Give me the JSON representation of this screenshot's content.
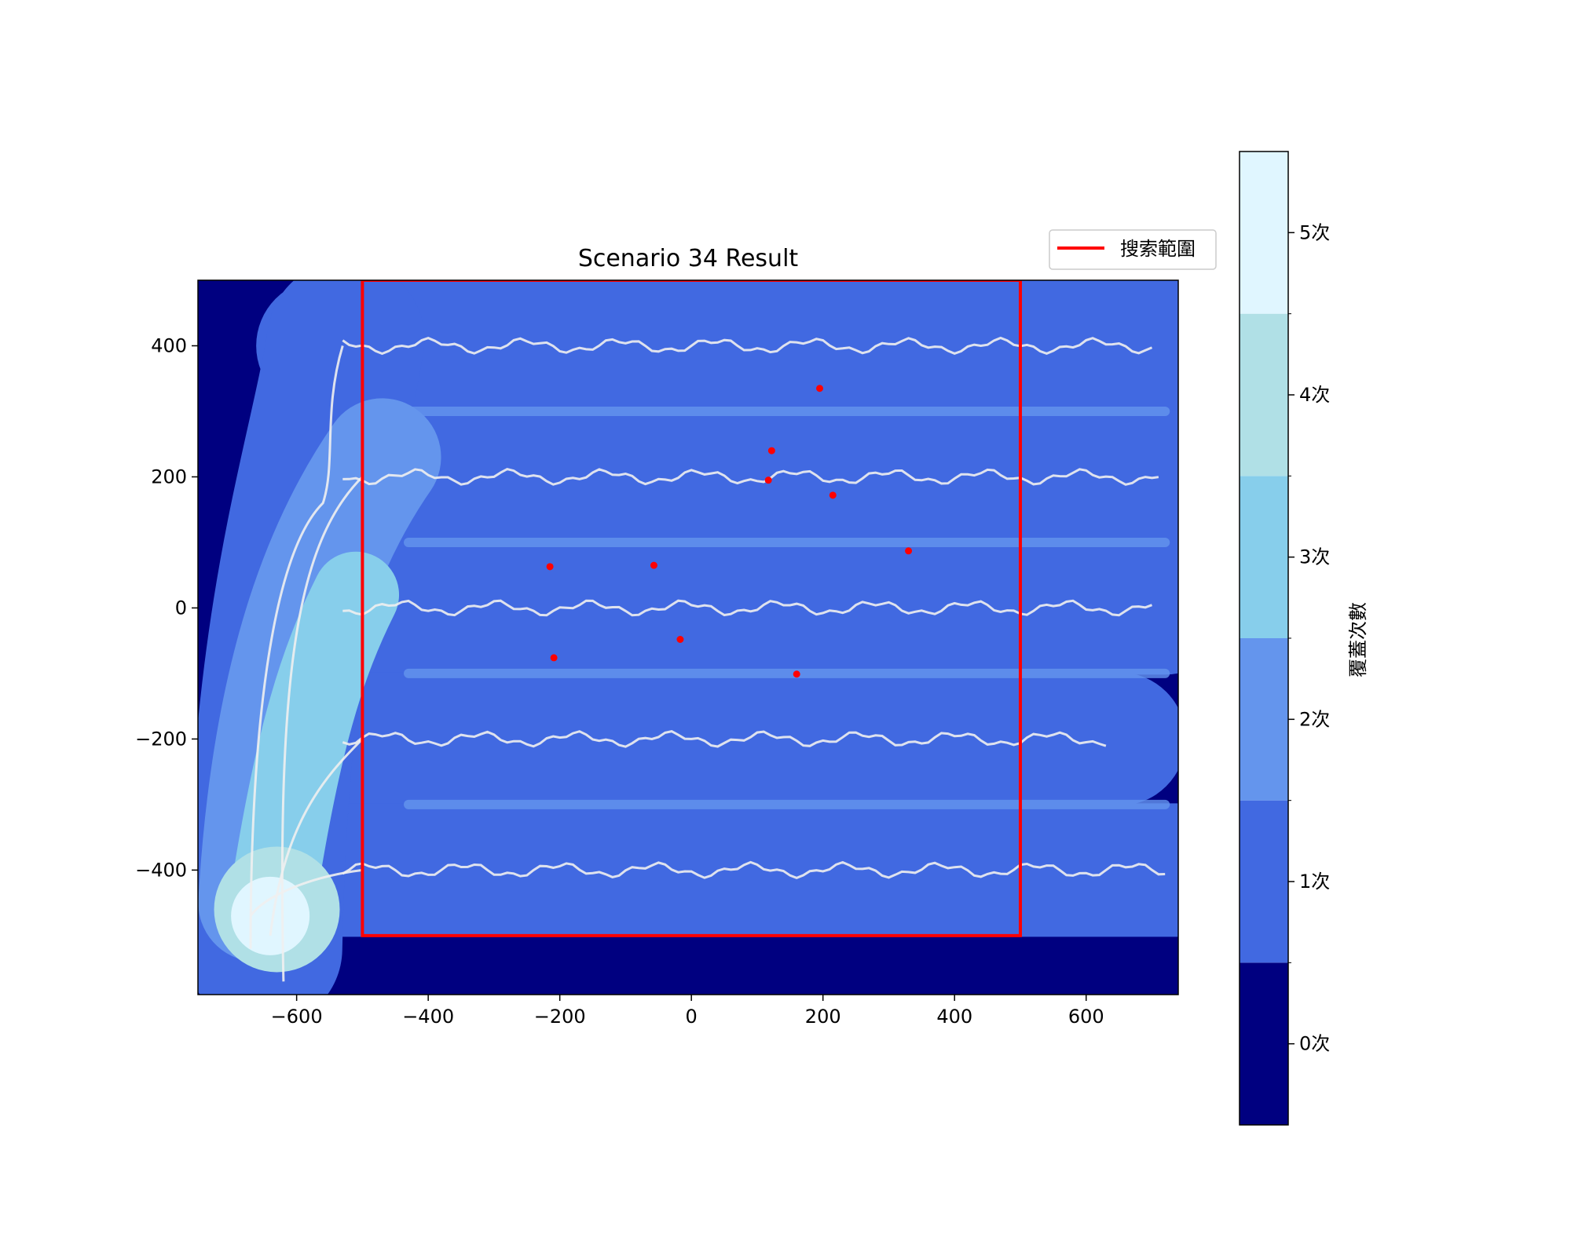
{
  "chart_data": {
    "type": "heatmap",
    "title": "Scenario 34 Result",
    "xlim": [
      -750,
      740
    ],
    "ylim": [
      -590,
      500
    ],
    "xticks": [
      -600,
      -400,
      -200,
      0,
      200,
      400,
      600
    ],
    "yticks": [
      -400,
      -200,
      0,
      200,
      400
    ],
    "xtick_labels": [
      "−600",
      "−400",
      "−200",
      "0",
      "200",
      "400",
      "600"
    ],
    "ytick_labels": [
      "−400",
      "−200",
      "0",
      "200",
      "400"
    ],
    "colorbar": {
      "label": "覆蓋次數",
      "levels": [
        0,
        1,
        2,
        3,
        4,
        5
      ],
      "tick_labels": [
        "0次",
        "1次",
        "2次",
        "3次",
        "4次",
        "5次"
      ],
      "colors": [
        "#000080",
        "#4169e1",
        "#6495ed",
        "#87ceeb",
        "#b0e0e6",
        "#e0f6ff"
      ]
    },
    "search_area": {
      "x_range": [
        -500,
        500
      ],
      "y_range": [
        -500,
        500
      ],
      "color": "#ff0000",
      "legend_label": "搜索範圍"
    },
    "sweep_line_y": [
      400,
      200,
      0,
      -200,
      -400
    ],
    "sweep_x_end": [
      700,
      710,
      700,
      630,
      720
    ],
    "targets": [
      {
        "x": 195,
        "y": 335
      },
      {
        "x": 122,
        "y": 240
      },
      {
        "x": 117,
        "y": 195
      },
      {
        "x": 215,
        "y": 172
      },
      {
        "x": 330,
        "y": 87
      },
      {
        "x": -215,
        "y": 63
      },
      {
        "x": -57,
        "y": 65
      },
      {
        "x": -17,
        "y": -48
      },
      {
        "x": -209,
        "y": -76
      },
      {
        "x": 160,
        "y": -101
      }
    ],
    "target_color": "#ff0000",
    "track_color": "#f0f0f0"
  }
}
